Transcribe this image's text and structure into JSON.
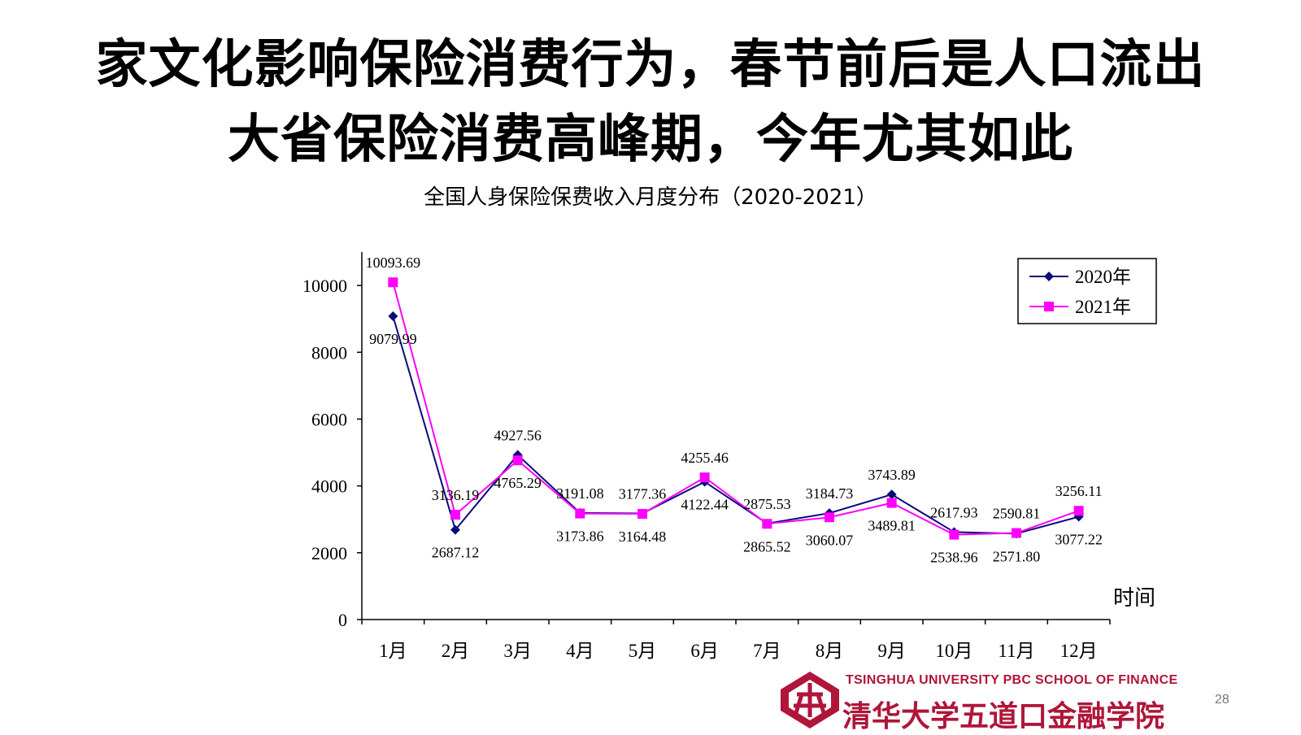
{
  "slide": {
    "title_line1": "家文化影响保险消费行为，春节前后是人口流出",
    "title_line2": "大省保险消费高峰期，今年尤其如此",
    "page_number": "28"
  },
  "footer": {
    "org_en": "TSINGHUA UNIVERSITY PBC SCHOOL OF FINANCE",
    "org_cn": "清华大学五道口金融学院"
  },
  "chart_data": {
    "type": "line",
    "title": "全国人身保险保费收入月度分布（2020-2021）",
    "xlabel": "时间",
    "ylabel": "",
    "categories": [
      "1月",
      "2月",
      "3月",
      "4月",
      "5月",
      "6月",
      "7月",
      "8月",
      "9月",
      "10月",
      "11月",
      "12月"
    ],
    "ylim": [
      0,
      11000
    ],
    "yticks": [
      0,
      2000,
      4000,
      6000,
      8000,
      10000
    ],
    "grid": false,
    "legend_position": "top-right",
    "series": [
      {
        "name": "2020年",
        "color": "#0a0a78",
        "marker": "diamond",
        "values": [
          9079.99,
          2687.12,
          4927.56,
          3191.08,
          3177.36,
          4122.44,
          2875.53,
          3184.73,
          3743.89,
          2617.93,
          2571.8,
          3077.22
        ],
        "labels": [
          "9079.99",
          "2687.12",
          "4927.56",
          "3191.08",
          "3177.36",
          "4122.44",
          "2875.53",
          "3184.73",
          "3743.89",
          "2617.93",
          "2571.80",
          "3077.22"
        ]
      },
      {
        "name": "2021年",
        "color": "#ff00ff",
        "marker": "square",
        "values": [
          10093.69,
          3136.19,
          4765.29,
          3173.86,
          3164.48,
          4255.46,
          2865.52,
          3060.07,
          3489.81,
          2538.96,
          2590.81,
          3256.11
        ],
        "labels": [
          "10093.69",
          "3136.19",
          "4765.29",
          "3173.86",
          "3164.48",
          "4255.46",
          "2865.52",
          "3060.07",
          "3489.81",
          "2538.96",
          "2590.81",
          "3256.11"
        ]
      }
    ]
  }
}
